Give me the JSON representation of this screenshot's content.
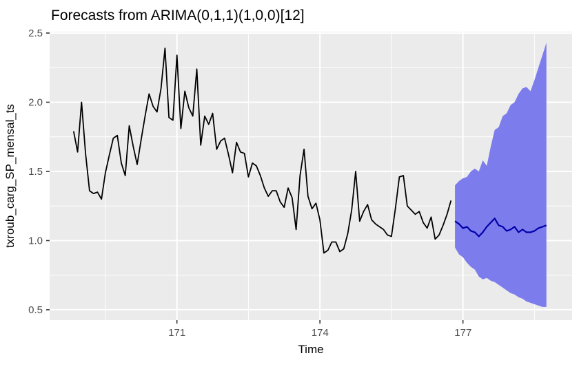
{
  "title": "Forecasts from ARIMA(0,1,1)(1,0,0)[12]",
  "colors": {
    "background": "#FFFFFF",
    "panel": "#EBEBEB",
    "grid_major": "#FFFFFF",
    "grid_minor": "#FFFFFF",
    "tick_mark": "#333333",
    "tick_label": "#4D4D4D",
    "text": "#000000",
    "observed_line": "#000000",
    "forecast_mean_line": "#0000AA",
    "interval_fill": "#7C7CEC"
  },
  "chart_data": {
    "type": "line",
    "title": "Forecasts from ARIMA(0,1,1)(1,0,0)[12]",
    "xlabel": "Time",
    "ylabel": "txroub_carg_SP_mensal_ts",
    "xlim": [
      168.33,
      179.29
    ],
    "ylim": [
      0.425,
      2.51
    ],
    "grid": true,
    "legend": false,
    "x_ticks": [
      "171",
      "174",
      "177"
    ],
    "x_tick_values": [
      171,
      174,
      177
    ],
    "x_minor_ticks": [
      169.5,
      172.5,
      175.5,
      178.5
    ],
    "y_ticks": [
      "2.5",
      "2.0",
      "1.5",
      "1.0",
      "0.5"
    ],
    "y_tick_values": [
      2.5,
      2.0,
      1.5,
      1.0,
      0.5
    ],
    "y_minor_ticks": [
      0.75,
      1.25,
      1.75,
      2.25
    ],
    "series": [
      {
        "name": "observed",
        "kind": "line",
        "color": "#000000",
        "width": 1.8,
        "x_start": 168.8333,
        "x_step": 0.0833333,
        "values": [
          1.79,
          1.64,
          2.0,
          1.63,
          1.36,
          1.34,
          1.35,
          1.3,
          1.49,
          1.62,
          1.74,
          1.76,
          1.56,
          1.47,
          1.83,
          1.68,
          1.55,
          1.73,
          1.9,
          2.06,
          1.97,
          1.93,
          2.1,
          2.39,
          1.89,
          1.87,
          2.34,
          1.81,
          2.08,
          1.96,
          1.9,
          2.24,
          1.69,
          1.9,
          1.84,
          1.92,
          1.66,
          1.72,
          1.74,
          1.62,
          1.49,
          1.71,
          1.64,
          1.63,
          1.46,
          1.56,
          1.54,
          1.47,
          1.38,
          1.32,
          1.36,
          1.36,
          1.28,
          1.24,
          1.38,
          1.31,
          1.08,
          1.47,
          1.66,
          1.32,
          1.23,
          1.27,
          1.15,
          0.91,
          0.93,
          0.99,
          0.99,
          0.92,
          0.94,
          1.05,
          1.22,
          1.5,
          1.14,
          1.21,
          1.26,
          1.15,
          1.12,
          1.1,
          1.08,
          1.04,
          1.03,
          1.23,
          1.46,
          1.47,
          1.25,
          1.22,
          1.19,
          1.21,
          1.13,
          1.09,
          1.17,
          1.01,
          1.04,
          1.11,
          1.19,
          1.29
        ]
      },
      {
        "name": "forecast-interval",
        "kind": "ribbon",
        "color": "#7C7CEC",
        "x_start": 176.8333,
        "x_step": 0.0833333,
        "upper": [
          1.4,
          1.43,
          1.45,
          1.46,
          1.5,
          1.52,
          1.5,
          1.58,
          1.54,
          1.68,
          1.8,
          1.82,
          1.9,
          1.92,
          1.98,
          2.0,
          2.06,
          2.1,
          2.11,
          2.08,
          2.16,
          2.25,
          2.34,
          2.43
        ],
        "lower": [
          0.95,
          0.9,
          0.88,
          0.84,
          0.81,
          0.79,
          0.74,
          0.72,
          0.73,
          0.71,
          0.7,
          0.68,
          0.66,
          0.64,
          0.62,
          0.61,
          0.59,
          0.58,
          0.56,
          0.55,
          0.54,
          0.53,
          0.52,
          0.52
        ]
      },
      {
        "name": "forecast-mean",
        "kind": "line",
        "color": "#0000AA",
        "width": 2.2,
        "x_start": 176.8333,
        "x_step": 0.0833333,
        "values": [
          1.14,
          1.12,
          1.09,
          1.1,
          1.07,
          1.06,
          1.03,
          1.06,
          1.1,
          1.13,
          1.16,
          1.11,
          1.1,
          1.07,
          1.08,
          1.1,
          1.06,
          1.08,
          1.06,
          1.06,
          1.07,
          1.09,
          1.1,
          1.11
        ]
      }
    ]
  }
}
